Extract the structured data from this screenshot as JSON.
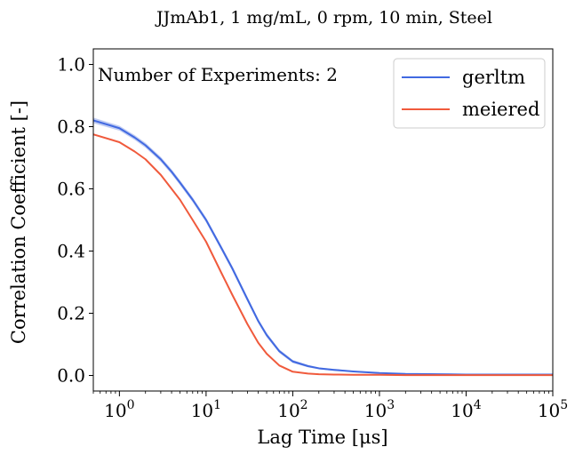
{
  "chart_data": {
    "type": "line",
    "title": "JJmAb1, 1 mg/mL, 0 rpm, 10 min, Steel",
    "xlabel": "Lag Time [μs]",
    "ylabel": "Correlation Coefficient [-]",
    "xscale": "log",
    "xlim": [
      0.5,
      100000
    ],
    "ylim": [
      -0.05,
      1.05
    ],
    "grid": false,
    "legend_position": "top-right",
    "annotation": "Number of Experiments: 2",
    "x_ticks": [
      {
        "value": 1,
        "base": "10",
        "exp": "0"
      },
      {
        "value": 10,
        "base": "10",
        "exp": "1"
      },
      {
        "value": 100,
        "base": "10",
        "exp": "2"
      },
      {
        "value": 1000,
        "base": "10",
        "exp": "3"
      },
      {
        "value": 10000,
        "base": "10",
        "exp": "4"
      },
      {
        "value": 100000,
        "base": "10",
        "exp": "5"
      }
    ],
    "y_ticks": [
      {
        "value": 0.0,
        "label": "0.0"
      },
      {
        "value": 0.2,
        "label": "0.2"
      },
      {
        "value": 0.4,
        "label": "0.4"
      },
      {
        "value": 0.6,
        "label": "0.6"
      },
      {
        "value": 0.8,
        "label": "0.8"
      },
      {
        "value": 1.0,
        "label": "1.0"
      }
    ],
    "series": [
      {
        "name": "gerltm",
        "color": "#4169e1",
        "band_color": "#a7b8ee",
        "x": [
          0.5,
          1,
          1.5,
          2,
          3,
          4,
          5,
          7,
          10,
          15,
          20,
          30,
          40,
          50,
          70,
          100,
          150,
          200,
          300,
          500,
          1000,
          2000,
          5000,
          10000,
          100000
        ],
        "y": [
          0.82,
          0.795,
          0.765,
          0.74,
          0.695,
          0.655,
          0.62,
          0.565,
          0.5,
          0.41,
          0.345,
          0.245,
          0.175,
          0.13,
          0.078,
          0.045,
          0.03,
          0.023,
          0.018,
          0.013,
          0.008,
          0.005,
          0.004,
          0.003,
          0.003
        ],
        "band_halfwidth": [
          0.009,
          0.008,
          0.008,
          0.008,
          0.008,
          0.008,
          0.008,
          0.008,
          0.008,
          0.008,
          0.008,
          0.008,
          0.007,
          0.007,
          0.006,
          0.005,
          0.004,
          0.003,
          0.003,
          0.002,
          0.002,
          0.001,
          0.001,
          0.001,
          0.001
        ]
      },
      {
        "name": "meiered",
        "color": "#f05a3c",
        "x": [
          0.5,
          1,
          1.5,
          2,
          3,
          4,
          5,
          7,
          10,
          15,
          20,
          30,
          40,
          50,
          70,
          100,
          150,
          200,
          300,
          500,
          1000,
          2000,
          10000,
          100000
        ],
        "y": [
          0.775,
          0.75,
          0.72,
          0.695,
          0.645,
          0.6,
          0.565,
          0.5,
          0.43,
          0.33,
          0.26,
          0.165,
          0.105,
          0.07,
          0.032,
          0.012,
          0.006,
          0.004,
          0.003,
          0.002,
          0.002,
          0.001,
          0.001,
          0.001
        ]
      }
    ]
  }
}
